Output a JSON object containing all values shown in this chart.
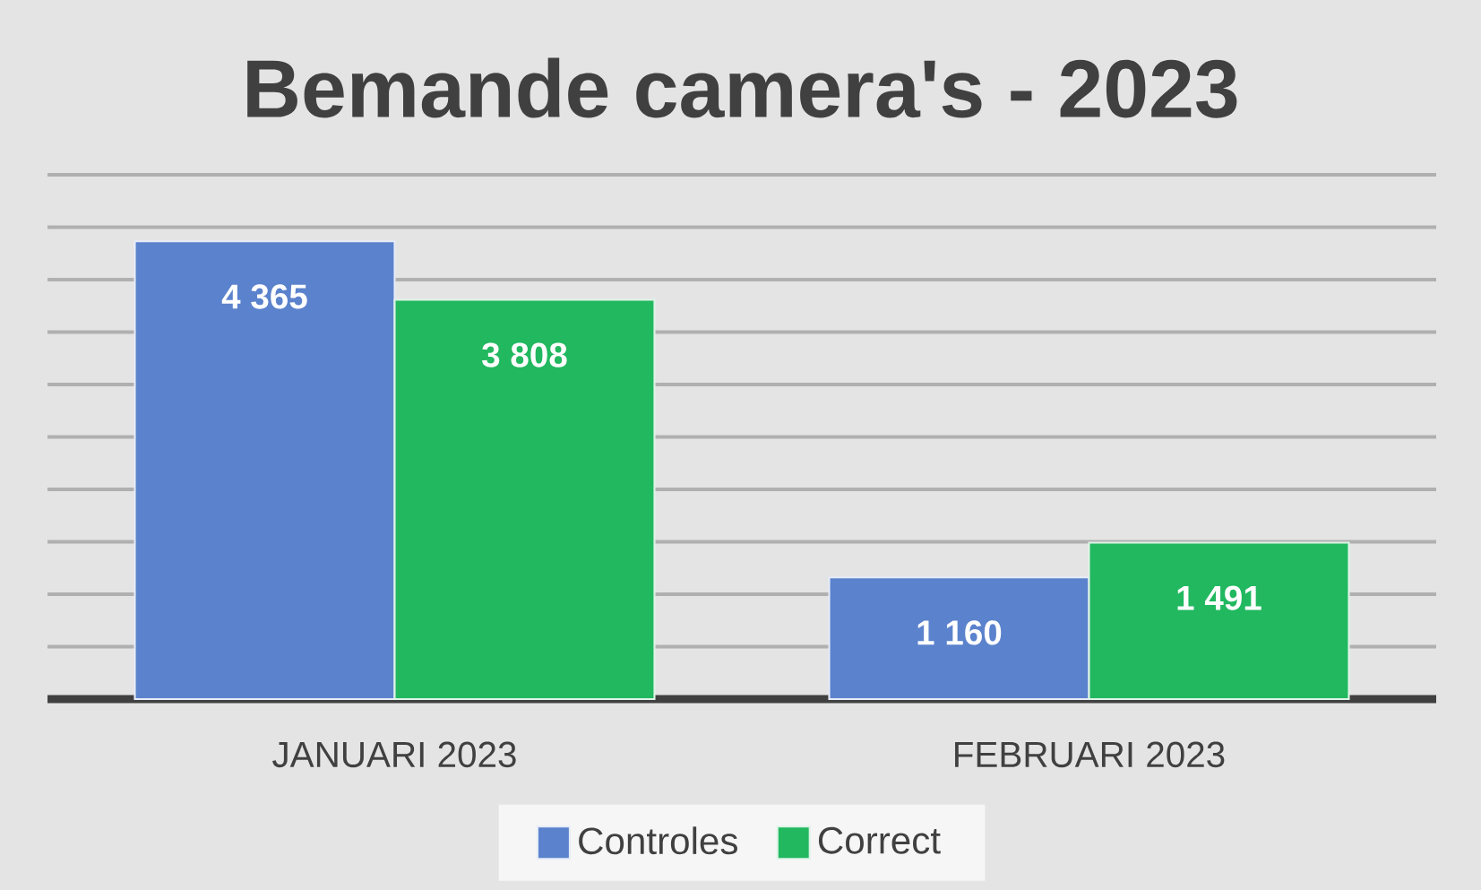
{
  "chart_data": {
    "type": "bar",
    "title": "Bemande camera's - 2023",
    "categories": [
      "JANUARI 2023",
      "FEBRUARI 2023"
    ],
    "series": [
      {
        "name": "Controles",
        "color": "#5b82cc",
        "values": [
          4365,
          1160
        ],
        "value_labels": [
          "4 365",
          "1 160"
        ]
      },
      {
        "name": "Correct",
        "color": "#21b85f",
        "values": [
          3808,
          1491
        ],
        "value_labels": [
          "3 808",
          "1 491"
        ]
      }
    ],
    "ylim": [
      0,
      5000
    ],
    "yticks": [
      {
        "value": 0,
        "label": null
      },
      {
        "value": 500,
        "label": null
      },
      {
        "value": 1000,
        "label": null
      },
      {
        "value": 1500,
        "label": null
      },
      {
        "value": 2000,
        "label": null
      },
      {
        "value": 2500,
        "label": null
      },
      {
        "value": 3000,
        "label": null
      },
      {
        "value": 3500,
        "label": null
      },
      {
        "value": 4000,
        "label": null
      },
      {
        "value": 4500,
        "label": null
      },
      {
        "value": 5000,
        "label": null
      }
    ],
    "grid": "y",
    "legend": "bottom",
    "tick_labels": "x"
  }
}
